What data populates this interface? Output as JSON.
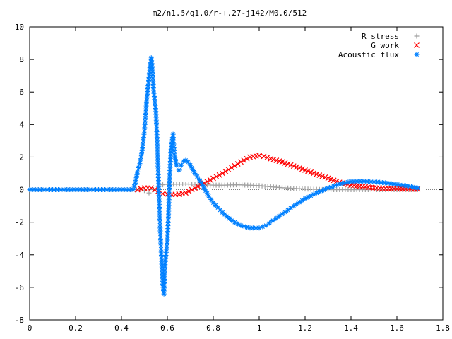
{
  "chart_data": {
    "type": "scatter",
    "title": "m2/n1.5/q1.0/r-+.27-j142/M0.0/512",
    "xlabel": "",
    "ylabel": "",
    "xlim": [
      0,
      1.8
    ],
    "ylim": [
      -8,
      10
    ],
    "x_ticks": [
      "0",
      "0.2",
      "0.4",
      "0.6",
      "0.8",
      "1",
      "1.2",
      "1.4",
      "1.6",
      "1.8"
    ],
    "y_ticks": [
      "-8",
      "-6",
      "-4",
      "-2",
      "0",
      "2",
      "4",
      "6",
      "8",
      "10"
    ],
    "grid": false,
    "legend_position": "top-right",
    "colors": {
      "r_stress": "#a0a0a0",
      "g_work": "#ff0000",
      "acoustic_flux": "#0080ff"
    },
    "series": [
      {
        "name": "R stress",
        "marker": "plus",
        "points": [
          [
            0.0,
            0
          ],
          [
            0.05,
            0
          ],
          [
            0.1,
            0
          ],
          [
            0.15,
            0
          ],
          [
            0.2,
            0
          ],
          [
            0.25,
            0
          ],
          [
            0.3,
            0
          ],
          [
            0.35,
            0
          ],
          [
            0.4,
            0
          ],
          [
            0.45,
            0
          ],
          [
            0.48,
            0
          ],
          [
            0.5,
            -0.05
          ],
          [
            0.52,
            -0.2
          ],
          [
            0.54,
            0.0
          ],
          [
            0.56,
            0.2
          ],
          [
            0.58,
            0.3
          ],
          [
            0.6,
            0.32
          ],
          [
            0.64,
            0.34
          ],
          [
            0.68,
            0.35
          ],
          [
            0.72,
            0.33
          ],
          [
            0.76,
            0.3
          ],
          [
            0.8,
            0.28
          ],
          [
            0.85,
            0.28
          ],
          [
            0.9,
            0.3
          ],
          [
            0.95,
            0.28
          ],
          [
            1.0,
            0.25
          ],
          [
            1.05,
            0.18
          ],
          [
            1.1,
            0.12
          ],
          [
            1.15,
            0.08
          ],
          [
            1.2,
            0.04
          ],
          [
            1.25,
            0.02
          ],
          [
            1.3,
            0.0
          ],
          [
            1.35,
            0.0
          ],
          [
            1.4,
            0.0
          ],
          [
            1.45,
            0.0
          ],
          [
            1.5,
            0.0
          ],
          [
            1.55,
            0.0
          ],
          [
            1.6,
            0.0
          ],
          [
            1.65,
            0.0
          ],
          [
            1.69,
            0.0
          ]
        ]
      },
      {
        "name": "G work",
        "marker": "cross",
        "points": [
          [
            0.47,
            0
          ],
          [
            0.5,
            0.1
          ],
          [
            0.53,
            0.1
          ],
          [
            0.56,
            -0.1
          ],
          [
            0.58,
            -0.25
          ],
          [
            0.6,
            -0.28
          ],
          [
            0.62,
            -0.3
          ],
          [
            0.65,
            -0.28
          ],
          [
            0.68,
            -0.2
          ],
          [
            0.72,
            0.1
          ],
          [
            0.76,
            0.4
          ],
          [
            0.8,
            0.7
          ],
          [
            0.84,
            1.0
          ],
          [
            0.88,
            1.35
          ],
          [
            0.92,
            1.7
          ],
          [
            0.96,
            2.0
          ],
          [
            1.0,
            2.1
          ],
          [
            1.02,
            2.05
          ],
          [
            1.05,
            1.9
          ],
          [
            1.1,
            1.7
          ],
          [
            1.15,
            1.45
          ],
          [
            1.2,
            1.2
          ],
          [
            1.25,
            0.95
          ],
          [
            1.3,
            0.7
          ],
          [
            1.35,
            0.45
          ],
          [
            1.4,
            0.28
          ],
          [
            1.45,
            0.18
          ],
          [
            1.5,
            0.12
          ],
          [
            1.55,
            0.08
          ],
          [
            1.6,
            0.05
          ],
          [
            1.65,
            0.04
          ],
          [
            1.69,
            0.03
          ]
        ]
      },
      {
        "name": "Acoustic flux",
        "marker": "star",
        "points": [
          [
            0.0,
            0
          ],
          [
            0.05,
            0
          ],
          [
            0.1,
            0
          ],
          [
            0.15,
            0
          ],
          [
            0.2,
            0
          ],
          [
            0.25,
            0
          ],
          [
            0.3,
            0
          ],
          [
            0.35,
            0
          ],
          [
            0.4,
            0
          ],
          [
            0.45,
            0
          ],
          [
            0.46,
            0.4
          ],
          [
            0.47,
            1.1
          ],
          [
            0.48,
            1.6
          ],
          [
            0.49,
            2.4
          ],
          [
            0.5,
            3.6
          ],
          [
            0.505,
            4.6
          ],
          [
            0.51,
            5.5
          ],
          [
            0.515,
            6.2
          ],
          [
            0.52,
            6.9
          ],
          [
            0.525,
            7.7
          ],
          [
            0.53,
            8.1
          ],
          [
            0.535,
            7.4
          ],
          [
            0.54,
            6.1
          ],
          [
            0.55,
            4.8
          ],
          [
            0.555,
            3.2
          ],
          [
            0.56,
            1.1
          ],
          [
            0.565,
            -0.9
          ],
          [
            0.57,
            -2.9
          ],
          [
            0.575,
            -4.4
          ],
          [
            0.58,
            -5.8
          ],
          [
            0.585,
            -6.4
          ],
          [
            0.59,
            -4.6
          ],
          [
            0.6,
            -3.1
          ],
          [
            0.605,
            -1.5
          ],
          [
            0.61,
            0.8
          ],
          [
            0.615,
            2.3
          ],
          [
            0.62,
            3.0
          ],
          [
            0.625,
            3.4
          ],
          [
            0.63,
            2.2
          ],
          [
            0.64,
            1.5
          ],
          [
            0.65,
            1.2
          ],
          [
            0.66,
            1.5
          ],
          [
            0.67,
            1.75
          ],
          [
            0.68,
            1.8
          ],
          [
            0.69,
            1.7
          ],
          [
            0.7,
            1.5
          ],
          [
            0.72,
            1.0
          ],
          [
            0.74,
            0.6
          ],
          [
            0.76,
            0.1
          ],
          [
            0.78,
            -0.4
          ],
          [
            0.8,
            -0.8
          ],
          [
            0.84,
            -1.4
          ],
          [
            0.88,
            -1.9
          ],
          [
            0.92,
            -2.2
          ],
          [
            0.96,
            -2.35
          ],
          [
            1.0,
            -2.35
          ],
          [
            1.03,
            -2.2
          ],
          [
            1.06,
            -1.9
          ],
          [
            1.1,
            -1.5
          ],
          [
            1.15,
            -1.0
          ],
          [
            1.2,
            -0.55
          ],
          [
            1.25,
            -0.2
          ],
          [
            1.3,
            0.1
          ],
          [
            1.35,
            0.35
          ],
          [
            1.4,
            0.5
          ],
          [
            1.45,
            0.52
          ],
          [
            1.5,
            0.48
          ],
          [
            1.55,
            0.42
          ],
          [
            1.6,
            0.32
          ],
          [
            1.65,
            0.22
          ],
          [
            1.69,
            0.1
          ]
        ]
      }
    ]
  }
}
